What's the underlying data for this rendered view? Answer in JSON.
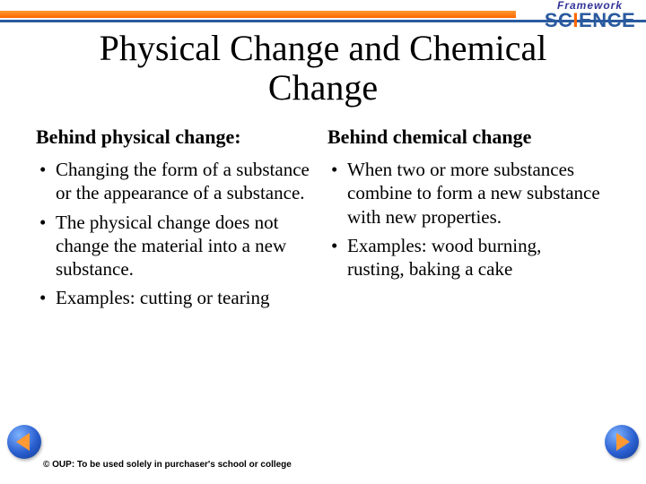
{
  "branding": {
    "framework": "Framework",
    "science": "SCIENCE"
  },
  "title": "Physical Change and Chemical Change",
  "left": {
    "heading": "Behind physical change:",
    "items": [
      "Changing the form of a substance or the appearance of a substance.",
      "The physical change does not change the material into a new substance.",
      "Examples: cutting or tearing"
    ]
  },
  "right": {
    "heading": "Behind chemical change",
    "items": [
      "When two or more substances combine to form a new substance with new properties.",
      "Examples: wood burning, rusting, baking a cake"
    ]
  },
  "footer": "© OUP: To be used solely in purchaser's school or college",
  "colors": {
    "accent_orange": "#ff6600",
    "accent_blue": "#2a5a9e"
  }
}
